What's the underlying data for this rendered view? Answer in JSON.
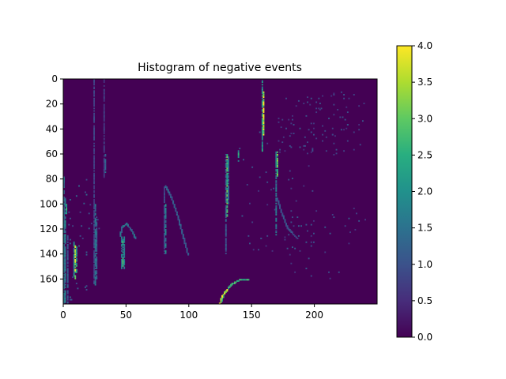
{
  "chart_data": {
    "type": "heatmap",
    "title": "Histogram of negative events",
    "xlabel": "",
    "ylabel": "",
    "grid": false,
    "x_range": [
      0,
      250
    ],
    "y_range": [
      0,
      180
    ],
    "y_inverted": true,
    "x_ticks": [
      "0",
      "50",
      "100",
      "150",
      "200"
    ],
    "y_ticks": [
      "0",
      "20",
      "40",
      "60",
      "80",
      "100",
      "120",
      "140",
      "160"
    ],
    "colormap": "viridis",
    "colorbar": {
      "range": [
        0.0,
        4.0
      ],
      "ticks": [
        "0.0",
        "0.5",
        "1.0",
        "1.5",
        "2.0",
        "2.5",
        "3.0",
        "3.5",
        "4.0"
      ]
    },
    "background_value": 0,
    "features": [
      {
        "kind": "vline",
        "x": 0,
        "y0": 78,
        "y1": 180,
        "value": 1.4
      },
      {
        "kind": "vline",
        "x": 1,
        "y0": 95,
        "y1": 180,
        "value": 1.8
      },
      {
        "kind": "vline",
        "x": 2,
        "y0": 100,
        "y1": 108,
        "value": 2.4
      },
      {
        "kind": "vline",
        "x": 3,
        "y0": 125,
        "y1": 180,
        "value": 1.2
      },
      {
        "kind": "vline",
        "x": 8,
        "y0": 130,
        "y1": 158,
        "value": 1.8
      },
      {
        "kind": "vline",
        "x": 9,
        "y0": 133,
        "y1": 160,
        "value": 3.6
      },
      {
        "kind": "vline",
        "x": 10,
        "y0": 133,
        "y1": 155,
        "value": 2.2
      },
      {
        "kind": "vline",
        "x": 24,
        "y0": 0,
        "y1": 165,
        "value": 0.8
      },
      {
        "kind": "vline",
        "x": 25,
        "y0": 100,
        "y1": 165,
        "value": 1.6
      },
      {
        "kind": "vline",
        "x": 26,
        "y0": 110,
        "y1": 160,
        "value": 1.3
      },
      {
        "kind": "vline",
        "x": 32,
        "y0": 0,
        "y1": 80,
        "value": 0.7
      },
      {
        "kind": "vline",
        "x": 33,
        "y0": 60,
        "y1": 75,
        "value": 1.4
      },
      {
        "kind": "vline",
        "x": 46,
        "y0": 125,
        "y1": 152,
        "value": 1.7
      },
      {
        "kind": "vline",
        "x": 47,
        "y0": 128,
        "y1": 150,
        "value": 2.6
      },
      {
        "kind": "vline",
        "x": 48,
        "y0": 126,
        "y1": 152,
        "value": 1.6
      },
      {
        "kind": "vline",
        "x": 80,
        "y0": 85,
        "y1": 140,
        "value": 0.9
      },
      {
        "kind": "vline",
        "x": 81,
        "y0": 100,
        "y1": 140,
        "value": 1.8
      },
      {
        "kind": "vline",
        "x": 129,
        "y0": 60,
        "y1": 140,
        "value": 1.1
      },
      {
        "kind": "vline",
        "x": 130,
        "y0": 60,
        "y1": 110,
        "value": 2.8
      },
      {
        "kind": "vline",
        "x": 131,
        "y0": 62,
        "y1": 100,
        "value": 1.6
      },
      {
        "kind": "vline",
        "x": 139,
        "y0": 57,
        "y1": 66,
        "value": 2.2
      },
      {
        "kind": "vline",
        "x": 158,
        "y0": 1,
        "y1": 58,
        "value": 2.2
      },
      {
        "kind": "vline",
        "x": 159,
        "y0": 10,
        "y1": 45,
        "value": 3.6
      },
      {
        "kind": "vline",
        "x": 169,
        "y0": 58,
        "y1": 125,
        "value": 1.6
      },
      {
        "kind": "vline",
        "x": 170,
        "y0": 58,
        "y1": 78,
        "value": 3.0
      },
      {
        "kind": "curve",
        "points": [
          [
            57,
            127
          ],
          [
            55,
            122
          ],
          [
            50,
            115
          ],
          [
            46,
            118
          ],
          [
            45,
            125
          ]
        ],
        "value": 1.5
      },
      {
        "kind": "curve",
        "points": [
          [
            81,
            85
          ],
          [
            86,
            95
          ],
          [
            91,
            110
          ],
          [
            95,
            125
          ],
          [
            99,
            140
          ]
        ],
        "value": 1.2
      },
      {
        "kind": "curve",
        "points": [
          [
            170,
            95
          ],
          [
            173,
            105
          ],
          [
            178,
            118
          ],
          [
            186,
            127
          ]
        ],
        "value": 1.0
      },
      {
        "kind": "curve",
        "points": [
          [
            125,
            178
          ],
          [
            128,
            170
          ],
          [
            133,
            164
          ],
          [
            140,
            160
          ],
          [
            147,
            160
          ]
        ],
        "value": 2.6
      },
      {
        "kind": "curve",
        "points": [
          [
            124,
            180
          ],
          [
            126,
            173
          ],
          [
            130,
            168
          ]
        ],
        "value": 3.7
      },
      {
        "kind": "scatter",
        "x_range": [
          140,
          200
        ],
        "y_range": [
          30,
          140
        ],
        "count": 70,
        "value": 1.0
      },
      {
        "kind": "scatter",
        "x_range": [
          170,
          240
        ],
        "y_range": [
          10,
          60
        ],
        "count": 90,
        "value": 0.9
      },
      {
        "kind": "scatter",
        "x_range": [
          180,
          240
        ],
        "y_range": [
          100,
          160
        ],
        "count": 30,
        "value": 1.0
      },
      {
        "kind": "scatter",
        "x_range": [
          0,
          30
        ],
        "y_range": [
          80,
          180
        ],
        "count": 40,
        "value": 1.2
      }
    ]
  }
}
